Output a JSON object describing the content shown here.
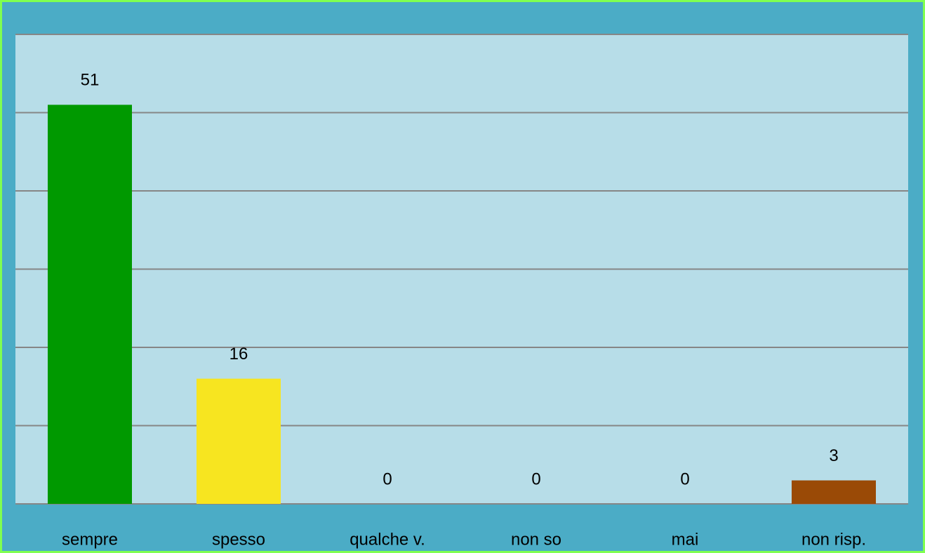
{
  "chart_data": {
    "type": "bar",
    "categories": [
      "sempre",
      "spesso",
      "qualche v.",
      "non so",
      "mai",
      "non risp."
    ],
    "values": [
      51,
      16,
      0,
      0,
      0,
      3
    ],
    "colors": [
      "#009900",
      "#f7e520",
      null,
      null,
      null,
      "#9a4a06"
    ],
    "ylim": [
      0,
      60
    ],
    "yticks": [
      0,
      10,
      20,
      30,
      40,
      50,
      60
    ],
    "grid": true
  }
}
